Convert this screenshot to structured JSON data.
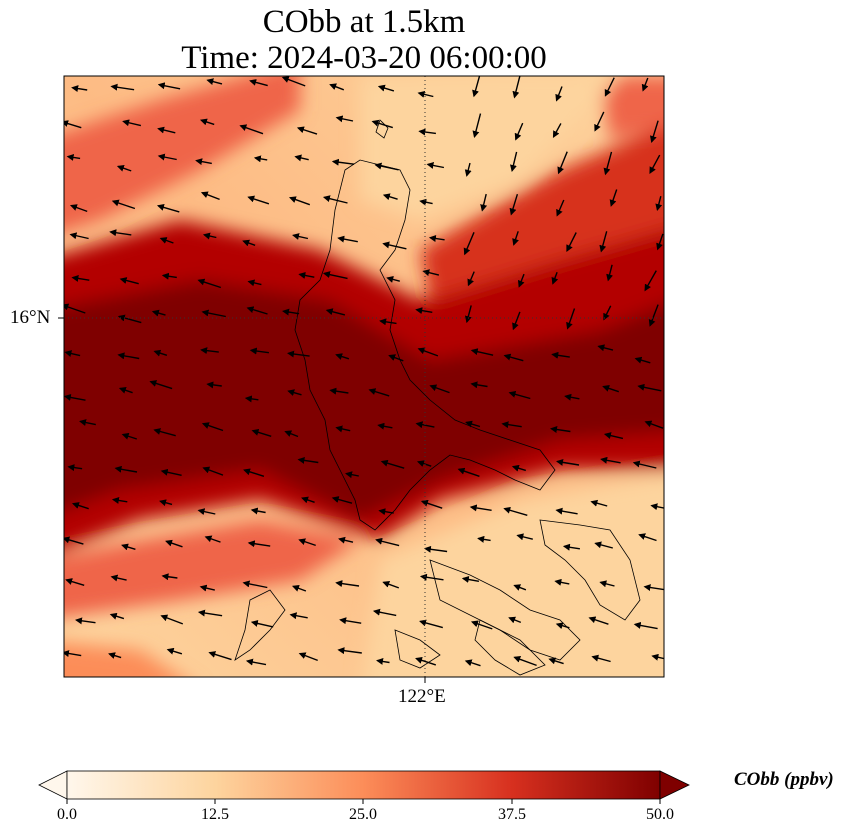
{
  "title": {
    "line1": "CObb at 1.5km",
    "line2": "Time: 2024-03-20 06:00:00"
  },
  "map": {
    "lat_label": "16°N",
    "lon_label": "122°E",
    "gridlines": "dotted",
    "coastlines": true,
    "vectors": "wind arrows, predominantly from the east-northeast"
  },
  "colorbar": {
    "label": "CObb (ppbv)",
    "ticks": [
      "0.0",
      "12.5",
      "25.0",
      "37.5",
      "50.0"
    ],
    "min": 0,
    "max": 50,
    "extend": "both",
    "colormap": [
      "#fff7ec",
      "#fdd49e",
      "#fc8d59",
      "#d7301f",
      "#7f0000"
    ]
  }
}
